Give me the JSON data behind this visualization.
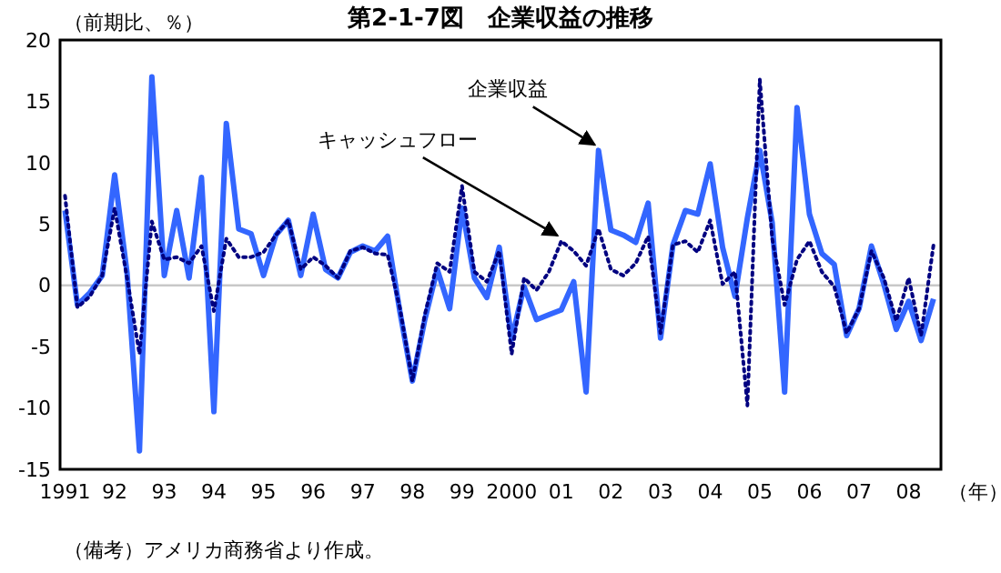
{
  "chart_data": {
    "type": "line",
    "title": "第2-1-7図　企業収益の推移",
    "ylabel": "（前期比、％）",
    "xlabel": "（年）",
    "x": [
      1991,
      1991.25,
      1991.5,
      1991.75,
      1992,
      1992.25,
      1992.5,
      1992.75,
      1993,
      1993.25,
      1993.5,
      1993.75,
      1994,
      1994.25,
      1994.5,
      1994.75,
      1995,
      1995.25,
      1995.5,
      1995.75,
      1996,
      1996.25,
      1996.5,
      1996.75,
      1997,
      1997.25,
      1997.5,
      1997.75,
      1998,
      1998.25,
      1998.5,
      1998.75,
      1999,
      1999.25,
      1999.5,
      1999.75,
      2000,
      2000.25,
      2000.5,
      2000.75,
      2001,
      2001.25,
      2001.5,
      2001.75,
      2002,
      2002.25,
      2002.5,
      2002.75,
      2003,
      2003.25,
      2003.5,
      2003.75,
      2004,
      2004.25,
      2004.5,
      2004.75,
      2005,
      2005.25,
      2005.5,
      2005.75,
      2006,
      2006.25,
      2006.5,
      2006.75,
      2007,
      2007.25,
      2007.5,
      2007.75,
      2008,
      2008.25,
      2008.5
    ],
    "series": [
      {
        "color": "#3366ff",
        "line_style": "solid",
        "values": [
          6.1,
          -1.6,
          -0.6,
          0.8,
          9.0,
          1.0,
          -13.5,
          17.0,
          0.8,
          6.1,
          0.6,
          8.8,
          -10.3,
          13.2,
          4.6,
          4.2,
          0.8,
          4.1,
          5.3,
          0.8,
          5.8,
          1.3,
          0.6,
          2.7,
          3.2,
          2.8,
          4.0,
          -2.2,
          -7.8,
          -2.8,
          1.3,
          -1.9,
          6.3,
          0.6,
          -1.0,
          3.1,
          -4.4,
          -0.1,
          -2.8,
          -2.4,
          -2.0,
          0.3,
          -8.7,
          11.0,
          4.5,
          4.1,
          3.5,
          6.7,
          -4.3,
          3.3,
          6.1,
          5.8,
          9.9,
          3.1,
          -0.9,
          5.5,
          11.0,
          5.1,
          -8.7,
          14.5,
          5.8,
          2.6,
          1.7,
          -4.1,
          -1.9,
          3.2,
          0.1,
          -3.6,
          -1.3,
          -4.5,
          -1.1
        ]
      },
      {
        "color": "#000080",
        "line_style": "dotted",
        "values": [
          7.3,
          -1.8,
          -0.9,
          0.8,
          6.3,
          0.6,
          -5.6,
          5.2,
          2.1,
          2.3,
          1.8,
          3.2,
          -2.1,
          3.8,
          2.3,
          2.3,
          2.7,
          4.1,
          5.3,
          1.3,
          2.3,
          1.6,
          0.6,
          2.8,
          3.1,
          2.6,
          2.5,
          -1.9,
          -7.8,
          -2.4,
          1.8,
          1.1,
          8.1,
          1.1,
          0.3,
          2.8,
          -5.6,
          0.6,
          -0.4,
          1.1,
          3.6,
          2.8,
          1.6,
          4.6,
          1.3,
          0.8,
          1.8,
          4.0,
          -3.9,
          3.3,
          3.6,
          2.7,
          5.3,
          0.1,
          1.1,
          -9.8,
          16.8,
          3.8,
          -1.6,
          2.1,
          3.6,
          1.1,
          -0.1,
          -3.9,
          -1.9,
          2.8,
          0.6,
          -2.9,
          0.6,
          -4.1,
          3.3
        ]
      }
    ],
    "xlim": [
      1990.9,
      2008.65
    ],
    "xticks": [
      {
        "value": 1991,
        "label": "1991"
      },
      {
        "value": 1992,
        "label": "92"
      },
      {
        "value": 1993,
        "label": "93"
      },
      {
        "value": 1994,
        "label": "94"
      },
      {
        "value": 1995,
        "label": "95"
      },
      {
        "value": 1996,
        "label": "96"
      },
      {
        "value": 1997,
        "label": "97"
      },
      {
        "value": 1998,
        "label": "98"
      },
      {
        "value": 1999,
        "label": "99"
      },
      {
        "value": 2000,
        "label": "2000"
      },
      {
        "value": 2001,
        "label": "01"
      },
      {
        "value": 2002,
        "label": "02"
      },
      {
        "value": 2003,
        "label": "03"
      },
      {
        "value": 2004,
        "label": "04"
      },
      {
        "value": 2005,
        "label": "05"
      },
      {
        "value": 2006,
        "label": "06"
      },
      {
        "value": 2007,
        "label": "07"
      },
      {
        "value": 2008,
        "label": "08"
      }
    ],
    "ylim": [
      -15,
      20
    ],
    "yticks": [
      -15,
      -10,
      -5,
      0,
      5,
      10,
      15,
      20
    ],
    "ref_lines": [
      {
        "axis": "y",
        "value": 0,
        "color": "#c8c8c8"
      }
    ],
    "annotations": [
      {
        "text": "企業収益",
        "x": 2001.75,
        "y": 11.0
      },
      {
        "text": "キャッシュフロー",
        "x": 2001,
        "y": 3.6
      },
      "（備考）アメリカ商務省より作成。"
    ]
  }
}
